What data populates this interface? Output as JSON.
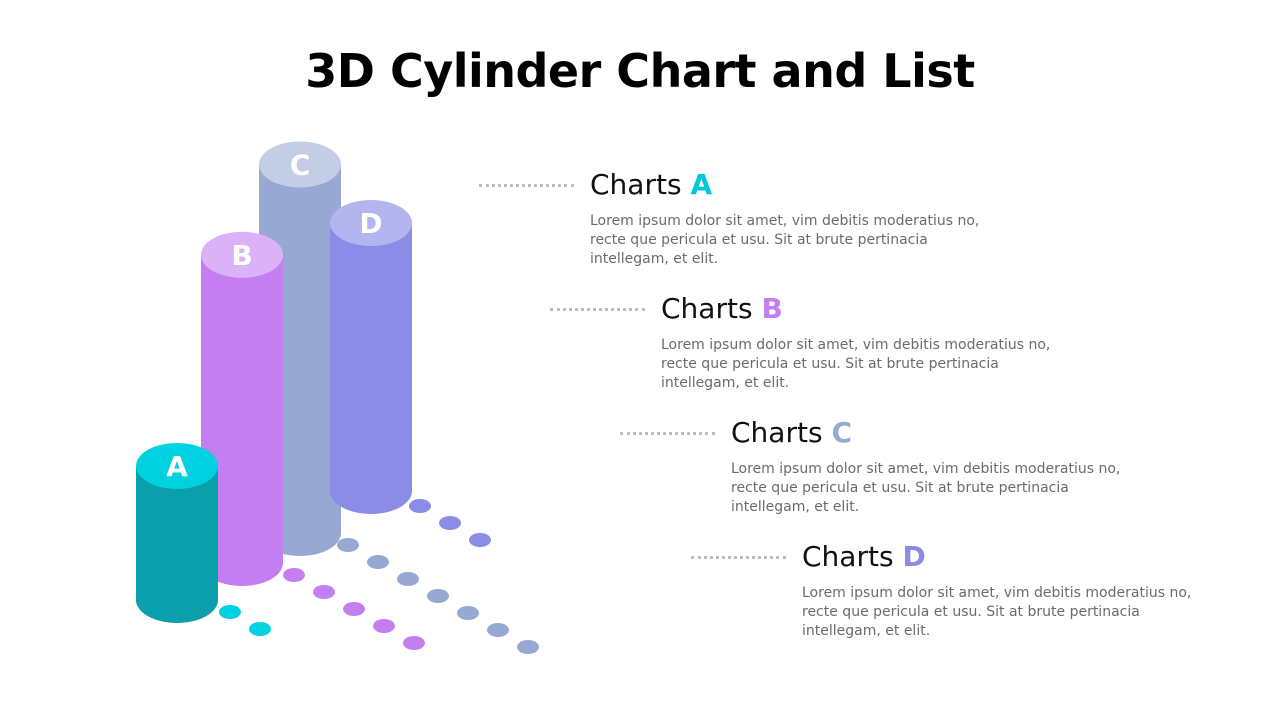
{
  "title": "3D Cylinder Chart and List",
  "colors": {
    "A": {
      "body": "#0a9fab",
      "top": "#00d1e0",
      "dot": "#00d1e0"
    },
    "B": {
      "body": "#c47ef2",
      "top": "#dbb2f7",
      "dot": "#c47ef2"
    },
    "C": {
      "body": "#97a9d3",
      "top": "#c3cde6",
      "dot": "#97a9d3"
    },
    "D": {
      "body": "#8a8ce5",
      "top": "#b3b5ef",
      "dot": "#8a8ce5"
    }
  },
  "cylinders": [
    {
      "label": "A",
      "value": 2,
      "dots": 2
    },
    {
      "label": "B",
      "value": 4.6,
      "dots": 5
    },
    {
      "label": "C",
      "value": 5.5,
      "dots": 7
    },
    {
      "label": "D",
      "value": 4,
      "dots": 3
    }
  ],
  "items": [
    {
      "prefix": "Charts",
      "letter": "A",
      "color": "#00c8d8",
      "desc": "Lorem ipsum dolor sit amet, vim debitis moderatius no, recte que pericula et usu. Sit at brute pertinacia intellegam, et elit."
    },
    {
      "prefix": "Charts",
      "letter": "B",
      "color": "#c47ef2",
      "desc": "Lorem ipsum dolor sit amet, vim debitis moderatius no, recte que pericula et usu. Sit at brute pertinacia intellegam, et elit."
    },
    {
      "prefix": "Charts",
      "letter": "C",
      "color": "#97a9d3",
      "desc": "Lorem ipsum dolor sit amet, vim debitis moderatius no, recte que pericula et usu. Sit at brute pertinacia intellegam, et elit."
    },
    {
      "prefix": "Charts",
      "letter": "D",
      "color": "#8a8ce5",
      "desc": "Lorem ipsum dolor sit amet, vim debitis moderatius no, recte que pericula et usu. Sit at brute pertinacia intellegam, et elit."
    }
  ]
}
